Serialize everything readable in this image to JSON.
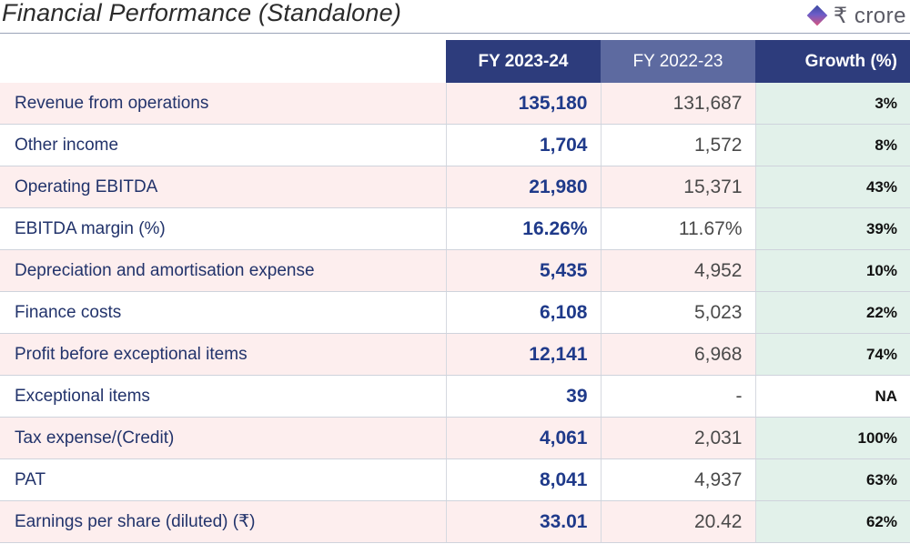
{
  "header": {
    "title": "Financial Performance (Standalone)",
    "unit_label": "₹ crore",
    "unit_icon": "diamond-icon"
  },
  "table": {
    "columns": [
      "",
      "FY 2023-24",
      "FY 2022-23",
      "Growth (%)"
    ],
    "rows": [
      {
        "label": "Revenue from operations",
        "fy2024": "135,180",
        "fy2023": "131,687",
        "growth": "3%"
      },
      {
        "label": "Other income",
        "fy2024": "1,704",
        "fy2023": "1,572",
        "growth": "8%"
      },
      {
        "label": "Operating EBITDA",
        "fy2024": "21,980",
        "fy2023": "15,371",
        "growth": "43%"
      },
      {
        "label": "EBITDA margin (%)",
        "fy2024": "16.26%",
        "fy2023": "11.67%",
        "growth": "39%"
      },
      {
        "label": "Depreciation and amortisation expense",
        "fy2024": "5,435",
        "fy2023": "4,952",
        "growth": "10%"
      },
      {
        "label": "Finance costs",
        "fy2024": "6,108",
        "fy2023": "5,023",
        "growth": "22%"
      },
      {
        "label": "Profit before exceptional items",
        "fy2024": "12,141",
        "fy2023": "6,968",
        "growth": "74%"
      },
      {
        "label": "Exceptional items",
        "fy2024": "39",
        "fy2023": "-",
        "growth": "NA"
      },
      {
        "label": "Tax expense/(Credit)",
        "fy2024": "4,061",
        "fy2023": "2,031",
        "growth": "100%"
      },
      {
        "label": "PAT",
        "fy2024": "8,041",
        "fy2023": "4,937",
        "growth": "63%"
      },
      {
        "label": "Earnings per share (diluted) (₹)",
        "fy2024": "33.01",
        "fy2023": "20.42",
        "growth": "62%"
      }
    ]
  },
  "colors": {
    "header_dark": "#2d3c7c",
    "header_mid": "#5d6aa0",
    "row_pink": "#fdeeee",
    "growth_green": "#e2f1ea",
    "value_blue": "#1f3a8a"
  }
}
